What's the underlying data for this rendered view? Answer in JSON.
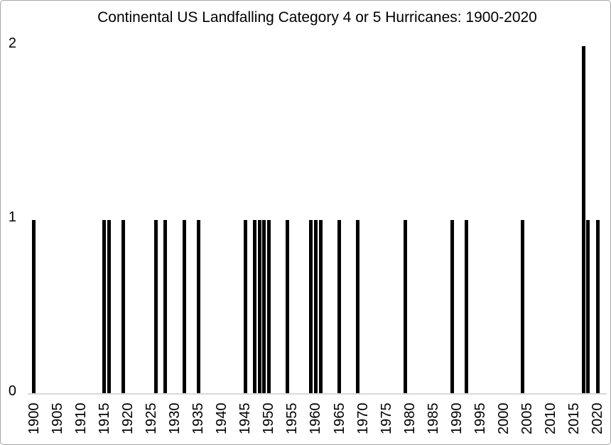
{
  "chart_data": {
    "type": "bar",
    "title": "Continental US Landfalling Category 4 or 5 Hurricanes: 1900-2020",
    "xlabel": "",
    "ylabel": "",
    "x_axis": {
      "start": 1900,
      "end": 2020,
      "tick_interval": 5,
      "tick_labels": [
        "1900",
        "1905",
        "1910",
        "1915",
        "1920",
        "1925",
        "1930",
        "1935",
        "1940",
        "1945",
        "1950",
        "1955",
        "1960",
        "1965",
        "1970",
        "1975",
        "1980",
        "1985",
        "1990",
        "1995",
        "2000",
        "2005",
        "2010",
        "2015",
        "2020"
      ]
    },
    "y_axis": {
      "min": 0,
      "max": 2,
      "tick_values": [
        0,
        1,
        2
      ],
      "tick_labels": [
        "0",
        "1",
        "2"
      ]
    },
    "points": [
      {
        "year": 1900,
        "count": 1
      },
      {
        "year": 1915,
        "count": 1
      },
      {
        "year": 1916,
        "count": 1
      },
      {
        "year": 1919,
        "count": 1
      },
      {
        "year": 1926,
        "count": 1
      },
      {
        "year": 1928,
        "count": 1
      },
      {
        "year": 1932,
        "count": 1
      },
      {
        "year": 1935,
        "count": 1
      },
      {
        "year": 1945,
        "count": 1
      },
      {
        "year": 1947,
        "count": 1
      },
      {
        "year": 1948,
        "count": 1
      },
      {
        "year": 1949,
        "count": 1
      },
      {
        "year": 1950,
        "count": 1
      },
      {
        "year": 1954,
        "count": 1
      },
      {
        "year": 1959,
        "count": 1
      },
      {
        "year": 1960,
        "count": 1
      },
      {
        "year": 1961,
        "count": 1
      },
      {
        "year": 1965,
        "count": 1
      },
      {
        "year": 1969,
        "count": 1
      },
      {
        "year": 1979,
        "count": 1
      },
      {
        "year": 1989,
        "count": 1
      },
      {
        "year": 1992,
        "count": 1
      },
      {
        "year": 2004,
        "count": 1
      },
      {
        "year": 2017,
        "count": 2
      },
      {
        "year": 2018,
        "count": 1
      },
      {
        "year": 2020,
        "count": 1
      }
    ],
    "colors": {
      "bar": "#000000",
      "axis_line": "#d9d9d9",
      "text": "#000000",
      "background": "#ffffff",
      "frame_border": "#a6a6a6"
    },
    "grid": "off",
    "legend": "none"
  }
}
